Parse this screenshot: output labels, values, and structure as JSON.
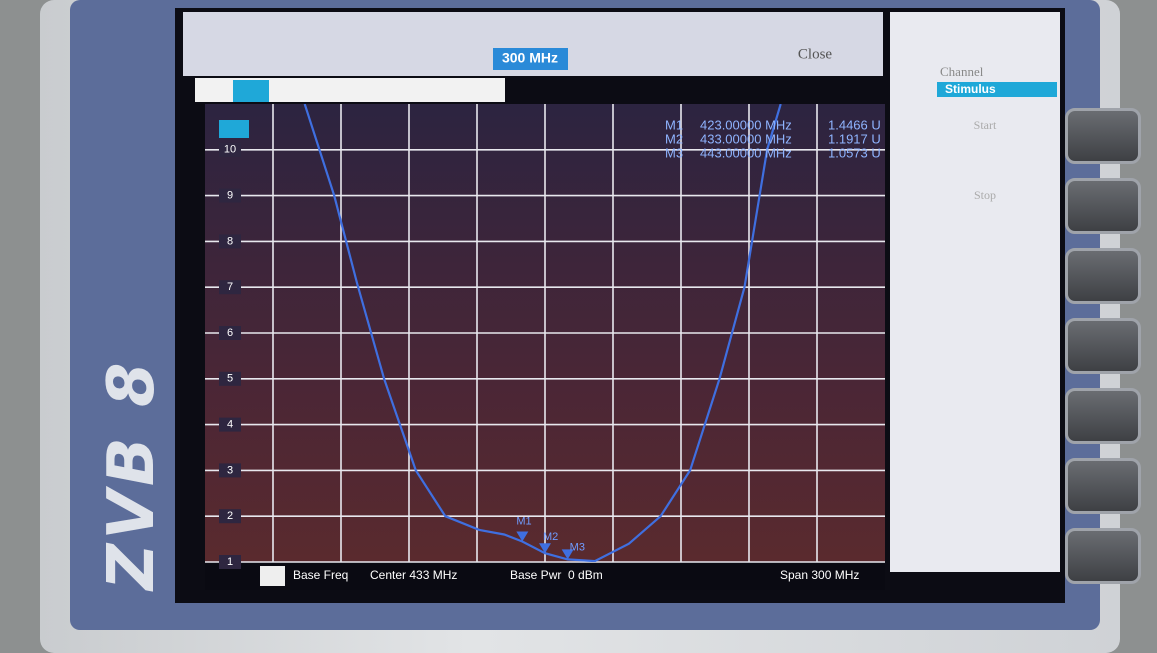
{
  "device_label": "ZVB 8",
  "toolbar": {
    "span_field": "300 MHz",
    "close": "Close"
  },
  "side_panel": {
    "title": "Channel",
    "header": "Stimulus",
    "buttons": [
      "Start",
      "Stop"
    ]
  },
  "chart_data": {
    "type": "line",
    "x": [
      327,
      340,
      350,
      362,
      376,
      389,
      404,
      415,
      423,
      433,
      443,
      455,
      470,
      484,
      497,
      510,
      521,
      531,
      537
    ],
    "values": [
      11,
      9,
      7.1,
      5,
      3,
      2,
      1.7,
      1.6,
      1.4466,
      1.1917,
      1.0573,
      1.02,
      1.4,
      2,
      3,
      5,
      7,
      10,
      11
    ],
    "color": "#3f6fe0",
    "xlim": [
      283,
      583
    ],
    "ylim": [
      1,
      11
    ],
    "yticks": [
      1,
      2,
      3,
      4,
      5,
      6,
      7,
      8,
      9,
      10
    ],
    "grid": true,
    "markers": [
      {
        "label": "M1",
        "x": 423,
        "y": 1.4466,
        "x_label": "423.00000 MHz",
        "y_label": "1.4466 U"
      },
      {
        "label": "M2",
        "x": 433,
        "y": 1.1917,
        "x_label": "433.00000 MHz",
        "y_label": "1.1917 U"
      },
      {
        "label": "M3",
        "x": 443,
        "y": 1.0573,
        "x_label": "443.00000 MHz",
        "y_label": "1.0573 U"
      }
    ]
  },
  "footer": {
    "base_freq": "Base Freq",
    "center": "Center 433 MHz",
    "base_pwr": "Base Pwr  0 dBm",
    "span": "Span 300 MHz"
  }
}
